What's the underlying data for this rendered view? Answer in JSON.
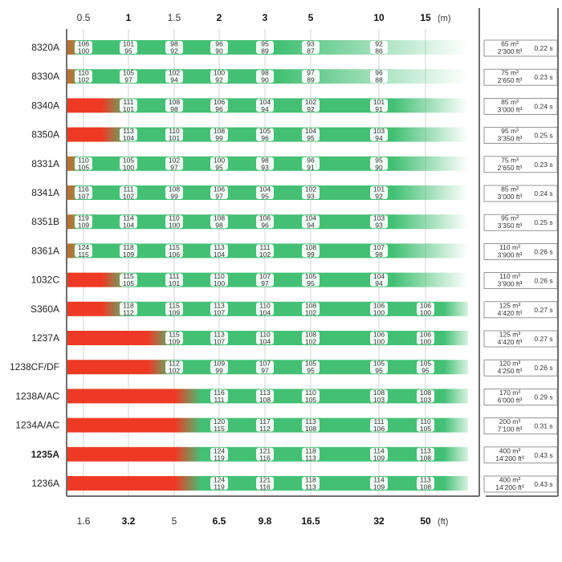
{
  "chart_data": {
    "type": "heatmap",
    "top_unit": "(m)",
    "bottom_unit": "(ft)",
    "top_ticks": [
      {
        "label": "0.5",
        "bold": false
      },
      {
        "label": "1",
        "bold": true
      },
      {
        "label": "1.5",
        "bold": false
      },
      {
        "label": "2",
        "bold": true
      },
      {
        "label": "3",
        "bold": true
      },
      {
        "label": "5",
        "bold": true
      },
      {
        "label": "10",
        "bold": true
      },
      {
        "label": "15",
        "bold": true
      }
    ],
    "bottom_ticks": [
      {
        "label": "1.6",
        "bold": false
      },
      {
        "label": "3.2",
        "bold": true
      },
      {
        "label": "5",
        "bold": false
      },
      {
        "label": "6.5",
        "bold": true
      },
      {
        "label": "9.8",
        "bold": true
      },
      {
        "label": "16.5",
        "bold": true
      },
      {
        "label": "32",
        "bold": true
      },
      {
        "label": "50",
        "bold": true
      }
    ],
    "models": [
      {
        "name": "8320A",
        "red_to": 0.08,
        "green_to": 5,
        "fade_to": 7,
        "cells": [
          [
            "106",
            "100"
          ],
          [
            "101",
            "95"
          ],
          [
            "98",
            "92"
          ],
          [
            "96",
            "90"
          ],
          [
            "95",
            "89"
          ],
          [
            "93",
            "87"
          ],
          [
            "92",
            "86"
          ],
          null
        ],
        "volume": "65 m³",
        "volume_ft": "2’300 ft³",
        "time": "0.22 s"
      },
      {
        "name": "8330A",
        "red_to": 0.08,
        "green_to": 5,
        "fade_to": 7,
        "cells": [
          [
            "110",
            "102"
          ],
          [
            "105",
            "97"
          ],
          [
            "102",
            "94"
          ],
          [
            "100",
            "92"
          ],
          [
            "98",
            "90"
          ],
          [
            "97",
            "89"
          ],
          [
            "96",
            "88"
          ],
          null
        ],
        "volume": "75 m³",
        "volume_ft": "2’650 ft³",
        "time": "0.23 s"
      },
      {
        "name": "8340A",
        "red_to": 0.6,
        "green_to": 7,
        "fade_to": 7,
        "cells": [
          null,
          [
            "111",
            "101"
          ],
          [
            "108",
            "98"
          ],
          [
            "106",
            "96"
          ],
          [
            "104",
            "94"
          ],
          [
            "102",
            "92"
          ],
          [
            "101",
            "91"
          ],
          null
        ],
        "volume": "85 m³",
        "volume_ft": "3’000 ft³",
        "time": "0.24 s"
      },
      {
        "name": "8350A",
        "red_to": 0.6,
        "green_to": 7,
        "fade_to": 7,
        "cells": [
          null,
          [
            "113",
            "104"
          ],
          [
            "110",
            "101"
          ],
          [
            "108",
            "99"
          ],
          [
            "105",
            "96"
          ],
          [
            "104",
            "95"
          ],
          [
            "103",
            "94"
          ],
          null
        ],
        "volume": "95 m³",
        "volume_ft": "3’350 ft³",
        "time": "0.25 s"
      },
      {
        "name": "8331A",
        "red_to": 0.08,
        "green_to": 7,
        "fade_to": 7,
        "cells": [
          [
            "110",
            "105"
          ],
          [
            "105",
            "100"
          ],
          [
            "102",
            "97"
          ],
          [
            "100",
            "95"
          ],
          [
            "98",
            "93"
          ],
          [
            "96",
            "91"
          ],
          [
            "95",
            "90"
          ],
          null
        ],
        "volume": "75 m³",
        "volume_ft": "2’650 ft³",
        "time": "0.23 s"
      },
      {
        "name": "8341A",
        "red_to": 0.08,
        "green_to": 7,
        "fade_to": 7,
        "cells": [
          [
            "116",
            "107"
          ],
          [
            "111",
            "102"
          ],
          [
            "108",
            "99"
          ],
          [
            "106",
            "97"
          ],
          [
            "104",
            "95"
          ],
          [
            "102",
            "93"
          ],
          [
            "101",
            "92"
          ],
          null
        ],
        "volume": "85 m³",
        "volume_ft": "3’000 ft³",
        "time": "0.24 s"
      },
      {
        "name": "8351B",
        "red_to": 0.08,
        "green_to": 7,
        "fade_to": 7,
        "cells": [
          [
            "119",
            "109"
          ],
          [
            "114",
            "104"
          ],
          [
            "110",
            "100"
          ],
          [
            "108",
            "98"
          ],
          [
            "106",
            "96"
          ],
          [
            "104",
            "94"
          ],
          [
            "103",
            "93"
          ],
          null
        ],
        "volume": "95 m³",
        "volume_ft": "3’350 ft³",
        "time": "0.25 s"
      },
      {
        "name": "8361A",
        "red_to": 0.08,
        "green_to": 7,
        "fade_to": 7,
        "cells": [
          [
            "124",
            "115"
          ],
          [
            "118",
            "109"
          ],
          [
            "115",
            "106"
          ],
          [
            "113",
            "104"
          ],
          [
            "111",
            "102"
          ],
          [
            "108",
            "99"
          ],
          [
            "107",
            "98"
          ],
          null
        ],
        "volume": "110 m³",
        "volume_ft": "3’900 ft³",
        "time": "0.26 s"
      },
      {
        "name": "1032C",
        "red_to": 0.6,
        "green_to": 7,
        "fade_to": 7,
        "cells": [
          null,
          [
            "115",
            "105"
          ],
          [
            "111",
            "101"
          ],
          [
            "110",
            "100"
          ],
          [
            "107",
            "97"
          ],
          [
            "105",
            "95"
          ],
          [
            "104",
            "94"
          ],
          null
        ],
        "volume": "110 m³",
        "volume_ft": "3’900 ft³",
        "time": "0.26 s"
      },
      {
        "name": "S360A",
        "red_to": 0.6,
        "green_to": 7.6,
        "fade_to": 7.6,
        "cells": [
          null,
          [
            "118",
            "112"
          ],
          [
            "115",
            "109"
          ],
          [
            "113",
            "107"
          ],
          [
            "110",
            "104"
          ],
          [
            "108",
            "102"
          ],
          [
            "106",
            "100"
          ],
          [
            "106",
            "100"
          ]
        ],
        "volume": "125 m³",
        "volume_ft": "4’420 ft³",
        "time": "0.27 s"
      },
      {
        "name": "1237A",
        "red_to": 1.6,
        "green_to": 7.6,
        "fade_to": 7.6,
        "cells": [
          null,
          null,
          [
            "115",
            "109"
          ],
          [
            "113",
            "107"
          ],
          [
            "110",
            "104"
          ],
          [
            "108",
            "102"
          ],
          [
            "106",
            "100"
          ],
          [
            "106",
            "100"
          ]
        ],
        "volume": "125 m³",
        "volume_ft": "4’420 ft³",
        "time": "0.27 s"
      },
      {
        "name": "1238CF/DF",
        "red_to": 1.6,
        "green_to": 7.6,
        "fade_to": 7.6,
        "cells": [
          null,
          null,
          [
            "112",
            "102"
          ],
          [
            "109",
            "99"
          ],
          [
            "107",
            "97"
          ],
          [
            "105",
            "95"
          ],
          [
            "105",
            "95"
          ],
          null
        ],
        "extra": [
          "105",
          "95"
        ],
        "volume": "120 m³",
        "volume_ft": "4’250 ft³",
        "time": "0.26 s"
      },
      {
        "name": "1238A/AC",
        "red_to": 2.2,
        "green_to": 7.6,
        "fade_to": 7.6,
        "cells": [
          null,
          null,
          null,
          [
            "116",
            "111"
          ],
          [
            "113",
            "108"
          ],
          [
            "110",
            "105"
          ],
          [
            "108",
            "103"
          ],
          [
            "108",
            "103"
          ]
        ],
        "volume": "170 m³",
        "volume_ft": "6’000 ft³",
        "time": "0.29 s"
      },
      {
        "name": "1234A/AC",
        "red_to": 2.2,
        "green_to": 7.6,
        "fade_to": 7.6,
        "cells": [
          null,
          null,
          null,
          [
            "120",
            "115"
          ],
          [
            "117",
            "112"
          ],
          [
            "113",
            "108"
          ],
          [
            "111",
            "106"
          ],
          [
            "110",
            "105"
          ]
        ],
        "volume": "200 m³",
        "volume_ft": "7’100 ft³",
        "time": "0.31 s"
      },
      {
        "name": "1235A",
        "red_to": 2.2,
        "green_to": 7.6,
        "fade_to": 7.6,
        "bold": true,
        "cells": [
          null,
          null,
          null,
          [
            "124",
            "119"
          ],
          [
            "121",
            "116"
          ],
          [
            "118",
            "113"
          ],
          [
            "114",
            "109"
          ],
          [
            "113",
            "108"
          ]
        ],
        "volume": "400 m³",
        "volume_ft": "14’200 ft³",
        "time": "0.43 s"
      },
      {
        "name": "1236A",
        "red_to": 2.2,
        "green_to": 7.6,
        "fade_to": 7.6,
        "cells": [
          null,
          null,
          null,
          [
            "124",
            "119"
          ],
          [
            "121",
            "116"
          ],
          [
            "118",
            "113"
          ],
          [
            "114",
            "109"
          ],
          [
            "113",
            "108"
          ]
        ],
        "volume": "400 m³",
        "volume_ft": "14’200 ft³",
        "time": "0.43 s"
      }
    ]
  },
  "colors": {
    "red": "#ee3a24",
    "brown": "#b87333",
    "green": "#43c074",
    "frame": "#6e6e6e",
    "grid": "#c9c9c9"
  }
}
